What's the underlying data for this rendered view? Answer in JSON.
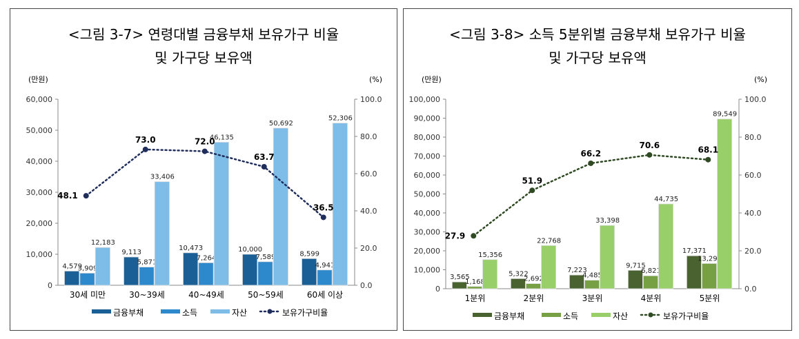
{
  "chart_data": [
    {
      "type": "bar",
      "title_line1": "<그림 3-7> 연령대별 금융부채 보유가구 비율",
      "title_line2": "및 가구당 보유액",
      "left_unit": "(만원)",
      "right_unit": "(%)",
      "categories": [
        "30세 미만",
        "30~39세",
        "40~49세",
        "50~59세",
        "60세 이상"
      ],
      "ylim": [
        0,
        60000
      ],
      "yticks": [
        "0",
        "10,000",
        "20,000",
        "30,000",
        "40,000",
        "50,000",
        "60,000"
      ],
      "y2lim": [
        0,
        100
      ],
      "y2ticks": [
        "0.0",
        "20.0",
        "40.0",
        "60.0",
        "80.0",
        "100.0"
      ],
      "series": [
        {
          "name": "금융부채",
          "color": "#1a5f96",
          "values": [
            4579,
            9113,
            10473,
            10000,
            8599
          ],
          "labels": [
            "4,579",
            "9,113",
            "10,473",
            "10,000",
            "8,599"
          ]
        },
        {
          "name": "소득",
          "color": "#2e88cc",
          "values": [
            3909,
            5871,
            7264,
            7589,
            4941
          ],
          "labels": [
            "3,909",
            "5,871",
            "7,264",
            "7,589",
            "4,941"
          ]
        },
        {
          "name": "자산",
          "color": "#7dbde8",
          "values": [
            12183,
            33406,
            46135,
            50692,
            52306
          ],
          "labels": [
            "12,183",
            "33,406",
            "46,135",
            "50,692",
            "52,306"
          ]
        }
      ],
      "line": {
        "name": "보유가구비율",
        "color": "#1f2d5c",
        "values": [
          48.1,
          73.0,
          72.0,
          63.7,
          36.5
        ],
        "labels": [
          "48.1",
          "73.0",
          "72.0",
          "63.7",
          "36.5"
        ]
      },
      "legend": "bottom",
      "grid": false
    },
    {
      "type": "bar",
      "title_line1": "<그림 3-8> 소득 5분위별 금융부채 보유가구 비율",
      "title_line2": "및 가구당 보유액",
      "left_unit": "(만원)",
      "right_unit": "(%)",
      "categories": [
        "1분위",
        "2분위",
        "3분위",
        "4분위",
        "5분위"
      ],
      "ylim": [
        0,
        100000
      ],
      "yticks": [
        "0",
        "10,000",
        "20,000",
        "30,000",
        "40,000",
        "50,000",
        "60,000",
        "70,000",
        "80,000",
        "90,000",
        "100,000"
      ],
      "y2lim": [
        0,
        100
      ],
      "y2ticks": [
        "0.0",
        "20.0",
        "40.0",
        "60.0",
        "80.0",
        "100.0"
      ],
      "series": [
        {
          "name": "금융부채",
          "color": "#4a6230",
          "values": [
            3565,
            5322,
            7223,
            9715,
            17371
          ],
          "labels": [
            "3,565",
            "5,322",
            "7,223",
            "9,715",
            "17,371"
          ]
        },
        {
          "name": "소득",
          "color": "#76a043",
          "values": [
            1168,
            2692,
            4485,
            6821,
            13295
          ],
          "labels": [
            "1,168",
            "2,692",
            "4,485",
            "6,821",
            "13,295"
          ]
        },
        {
          "name": "자산",
          "color": "#98cf68",
          "values": [
            15356,
            22768,
            33398,
            44735,
            89549
          ],
          "labels": [
            "15,356",
            "22,768",
            "33,398",
            "44,735",
            "89,549"
          ]
        }
      ],
      "line": {
        "name": "보유가구비율",
        "color": "#2f4a22",
        "values": [
          27.9,
          51.9,
          66.2,
          70.6,
          68.1
        ],
        "labels": [
          "27.9",
          "51.9",
          "66.2",
          "70.6",
          "68.1"
        ]
      },
      "legend": "bottom",
      "grid": false
    }
  ]
}
